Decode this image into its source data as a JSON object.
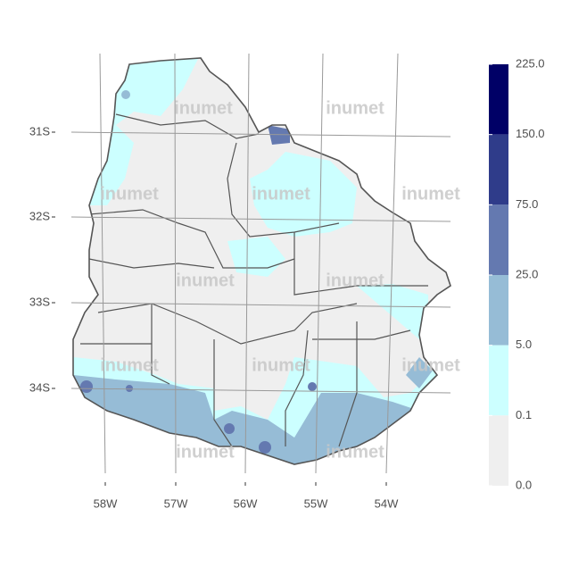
{
  "map": {
    "lat_labels": [
      "31S",
      "32S",
      "33S",
      "34S"
    ],
    "lon_labels": [
      "58W",
      "57W",
      "56W",
      "55W",
      "54W"
    ],
    "watermark": "inumet",
    "legend": {
      "breaks": [
        {
          "value": 225,
          "label": "225.0"
        },
        {
          "value": 150,
          "label": "150.0"
        },
        {
          "value": 75,
          "label": "75.0"
        },
        {
          "value": 25,
          "label": "25.0"
        },
        {
          "value": 5,
          "label": "5.0"
        },
        {
          "value": 0.1,
          "label": "0.1"
        },
        {
          "value": 0,
          "label": "0.0"
        }
      ],
      "colors": [
        "#000066",
        "#2f3c8a",
        "#6479b0",
        "#96bcd6",
        "#ccffff",
        "#efefef"
      ]
    }
  }
}
